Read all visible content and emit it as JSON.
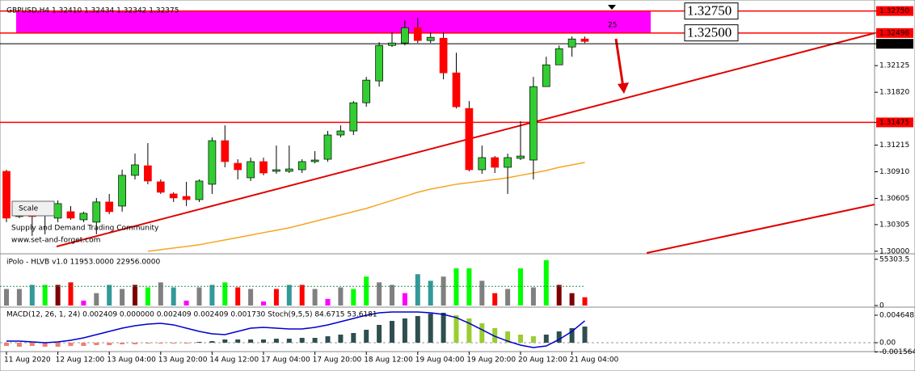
{
  "chart_data": [
    {
      "type": "candlestick",
      "title": "GBPUSD,H4 1.32410 1.32434 1.32342 1.32375",
      "categories": [
        "11 Aug 2020",
        null,
        null,
        null,
        "12 Aug 12:00",
        null,
        null,
        null,
        "13 Aug 04:00",
        null,
        null,
        null,
        "13 Aug 20:00",
        null,
        null,
        null,
        "14 Aug 12:00",
        null,
        null,
        null,
        "17 Aug 04:00",
        null,
        null,
        null,
        "17 Aug 20:00",
        null,
        null,
        null,
        "18 Aug 12:00",
        null,
        null,
        null,
        "19 Aug 04:00",
        null,
        null,
        null,
        "19 Aug 20:00",
        null,
        null,
        null,
        "20 Aug 12:00",
        null,
        null,
        null,
        "21 Aug 04:00",
        null
      ],
      "open": [
        1.30915,
        1.30397,
        1.30517,
        1.30517,
        1.30379,
        1.30453,
        1.3036,
        1.30333,
        1.30564,
        1.30517,
        1.30869,
        1.30979,
        1.30795,
        1.30656,
        1.30628,
        1.30591,
        1.30767,
        1.31266,
        1.31007,
        1.30841,
        1.31026,
        1.30915,
        1.30915,
        1.30933,
        1.31026,
        1.31053,
        1.31331,
        1.31377,
        1.317,
        1.3195,
        1.32356,
        1.32384,
        1.32559,
        1.32412,
        1.32439,
        1.32042,
        1.31635,
        1.30933,
        1.31072,
        1.30961,
        1.31063,
        1.31044,
        1.31885,
        1.32134,
        1.32338,
        1.3243
      ],
      "high": [
        1.30933,
        1.30545,
        1.30545,
        1.30564,
        1.30582,
        1.30517,
        1.30453,
        1.3061,
        1.30656,
        1.30933,
        1.31118,
        1.31238,
        1.30822,
        1.30675,
        1.30795,
        1.30822,
        1.31303,
        1.31441,
        1.31053,
        1.31072,
        1.31072,
        1.3121,
        1.3121,
        1.31053,
        1.31146,
        1.31377,
        1.31441,
        1.31719,
        1.31996,
        1.32393,
        1.32504,
        1.32643,
        1.3267,
        1.32504,
        1.32504,
        1.32273,
        1.31719,
        1.3121,
        1.3109,
        1.31118,
        1.31488,
        1.31996,
        1.32227,
        1.32356,
        1.32458,
        1.32458
      ],
      "low": [
        1.30333,
        1.30379,
        1.30176,
        1.30194,
        1.30333,
        1.3036,
        1.30333,
        1.30194,
        1.30425,
        1.30453,
        1.30822,
        1.30767,
        1.30656,
        1.30564,
        1.30517,
        1.30564,
        1.30656,
        1.30961,
        1.30822,
        1.30804,
        1.30869,
        1.30887,
        1.30896,
        1.30896,
        1.31007,
        1.31026,
        1.31303,
        1.31331,
        1.31654,
        1.31885,
        1.32338,
        1.32356,
        1.32384,
        1.32384,
        1.31968,
        1.31635,
        1.30915,
        1.30887,
        1.30896,
        1.30656,
        1.31044,
        1.30822,
        1.31885,
        1.32134,
        1.32227,
        1.32384
      ],
      "close": [
        1.30379,
        1.30517,
        1.30397,
        1.30425,
        1.30545,
        1.30379,
        1.30434,
        1.30564,
        1.30453,
        1.30869,
        1.30989,
        1.30804,
        1.30675,
        1.3061,
        1.30591,
        1.30804,
        1.31266,
        1.31026,
        1.30933,
        1.31026,
        1.30896,
        1.30933,
        1.30942,
        1.31026,
        1.31044,
        1.31331,
        1.31377,
        1.317,
        1.31959,
        1.32356,
        1.32384,
        1.32559,
        1.32412,
        1.32449,
        1.32042,
        1.31654,
        1.30933,
        1.31072,
        1.30961,
        1.31072,
        1.3109,
        1.31885,
        1.32134,
        1.32319,
        1.3243,
        1.32402
      ],
      "up_color": "#32cd32",
      "down_color": "#ff0000",
      "moving_average": {
        "color": "#f5a623",
        "values": [
          null,
          null,
          null,
          null,
          null,
          null,
          null,
          null,
          null,
          null,
          null,
          1.3,
          1.30018,
          1.30037,
          1.30055,
          1.30074,
          1.30102,
          1.30129,
          1.30157,
          1.30185,
          1.30213,
          1.3024,
          1.30268,
          1.30305,
          1.30342,
          1.30379,
          1.30416,
          1.30453,
          1.3049,
          1.30536,
          1.30582,
          1.30628,
          1.30675,
          1.30711,
          1.30739,
          1.30767,
          1.30785,
          1.30804,
          1.30822,
          1.30841,
          1.30869,
          1.30896,
          1.30924,
          1.30961,
          1.30989,
          1.31016
        ]
      },
      "ylim": [
        1.2998,
        1.3283
      ],
      "yticks": [
        {
          "value": 1.3275,
          "label": "1.32750"
        },
        1.32498,
        1.32375,
        1.32125,
        {
          "value": 1.3182,
          "label": "1.31820"
        },
        1.31475,
        1.31215,
        {
          "value": 1.3091,
          "label": "1.30910"
        },
        1.30605,
        1.30305,
        {
          "value": 1.3,
          "label": "1.30000"
        }
      ],
      "levels": [
        {
          "value": 1.3275,
          "color": "#ff0000"
        },
        {
          "value": 1.32498,
          "color": "#ff0000"
        },
        {
          "value": 1.32375,
          "color": "#000000"
        },
        {
          "value": 1.31475,
          "color": "#ff0000"
        }
      ],
      "zone": {
        "color": "#ff00ff",
        "top": {
          "value": 1.3275,
          "label": "1.32750"
        },
        "bottom": {
          "value": 1.325,
          "label": "1.32500"
        }
      },
      "annotation": "25",
      "watermark": [
        "Supply and Demand Trading Community",
        "www.set-and-forget.com"
      ],
      "button": "Scale"
    },
    {
      "type": "bar",
      "title": "iPolo - HLVB v1.0 11953.0000 22956.0000",
      "values": [
        19800,
        19800,
        24700,
        24700,
        24700,
        27700,
        5900,
        14800,
        24700,
        19800,
        24700,
        21700,
        27700,
        21700,
        5900,
        21700,
        24700,
        27700,
        21700,
        19800,
        4900,
        19800,
        24700,
        24700,
        19800,
        7900,
        21700,
        19800,
        34600,
        27700,
        24700,
        14800,
        37500,
        29600,
        34600,
        44500,
        44500,
        29600,
        14800,
        19800,
        44500,
        21700,
        54300,
        24700,
        14800,
        9900
      ],
      "colors": [
        "#808080",
        "#808080",
        "#339999",
        "#00ff00",
        "#800000",
        "#ff0000",
        "#ff00ff",
        "#808080",
        "#339999",
        "#808080",
        "#800000",
        "#00ff00",
        "#808080",
        "#339999",
        "#ff00ff",
        "#808080",
        "#339999",
        "#00ff00",
        "#ff0000",
        "#808080",
        "#ff00ff",
        "#ff0000",
        "#339999",
        "#ff0000",
        "#808080",
        "#ff00ff",
        "#808080",
        "#00ff00",
        "#00ff00",
        "#808080",
        "#808080",
        "#ff00ff",
        "#339999",
        "#339999",
        "#808080",
        "#00ff00",
        "#00ff00",
        "#808080",
        "#ff0000",
        "#808080",
        "#00ff00",
        "#808080",
        "#00ff00",
        "#800000",
        "#800000",
        "#ff0000"
      ],
      "average": 22956,
      "ylim": [
        0,
        58000
      ],
      "yticks": [
        55303.5,
        0
      ]
    },
    {
      "type": "bar",
      "title": "MACD(12, 26, 1, 24) 0.002409 0.000000 0.002409 0.002409 0.001730  Stoch(9,5,5) 84.6715 53.6181",
      "values": [
        -0.00055,
        -0.00068,
        -0.00055,
        -0.00068,
        -0.00068,
        -0.00055,
        -0.00055,
        -0.00041,
        -0.00041,
        -0.00027,
        -0.00027,
        -0.00014,
        -0.00014,
        -0.00014,
        -0.00014,
        0.00014,
        0.00027,
        0.00055,
        0.00055,
        0.00055,
        0.00055,
        0.00068,
        0.00068,
        0.00082,
        0.00082,
        0.00109,
        0.00137,
        0.00164,
        0.00219,
        0.00301,
        0.00369,
        0.0041,
        0.00451,
        0.00492,
        0.00506,
        0.00465,
        0.0041,
        0.00328,
        0.00246,
        0.00191,
        0.00137,
        0.00109,
        0.00137,
        0.00191,
        0.00246,
        0.00273
      ],
      "colors": [
        "#f08070",
        "#f08070",
        "#f08070",
        "#f08070",
        "#f08070",
        "#f08070",
        "#f08070",
        "#f08070",
        "#f08070",
        "#f08070",
        "#f08070",
        "#f08070",
        "#f08070",
        "#f08070",
        "#f08070",
        "#2f4f4f",
        "#2f4f4f",
        "#2f4f4f",
        "#2f4f4f",
        "#2f4f4f",
        "#2f4f4f",
        "#2f4f4f",
        "#2f4f4f",
        "#2f4f4f",
        "#2f4f4f",
        "#2f4f4f",
        "#2f4f4f",
        "#2f4f4f",
        "#2f4f4f",
        "#2f4f4f",
        "#2f4f4f",
        "#2f4f4f",
        "#2f4f4f",
        "#2f4f4f",
        "#2f4f4f",
        "#9acd32",
        "#9acd32",
        "#9acd32",
        "#9acd32",
        "#9acd32",
        "#9acd32",
        "#9acd32",
        "#2f4f4f",
        "#2f4f4f",
        "#2f4f4f",
        "#2f4f4f"
      ],
      "signal": {
        "color": "#0000cd",
        "values": [
          0.00027,
          0.00027,
          0.00014,
          0,
          0.00014,
          0.00041,
          0.00082,
          0.00137,
          0.00191,
          0.00246,
          0.00287,
          0.00314,
          0.00328,
          0.00301,
          0.00246,
          0.00191,
          0.0015,
          0.00137,
          0.00191,
          0.00246,
          0.0026,
          0.00246,
          0.00232,
          0.00232,
          0.0026,
          0.00301,
          0.00355,
          0.0041,
          0.00465,
          0.00506,
          0.00519,
          0.00519,
          0.00519,
          0.00506,
          0.00478,
          0.00424,
          0.00328,
          0.00219,
          0.00109,
          0.00027,
          -0.00041,
          -0.00082,
          -0.00055,
          0.00055,
          0.00191,
          0.00369
        ]
      },
      "ylim": [
        -0.00164,
        0.0056
      ],
      "yticks": [
        0.004648,
        {
          "value": 0,
          "label": "0.00"
        },
        -0.001564
      ]
    }
  ]
}
